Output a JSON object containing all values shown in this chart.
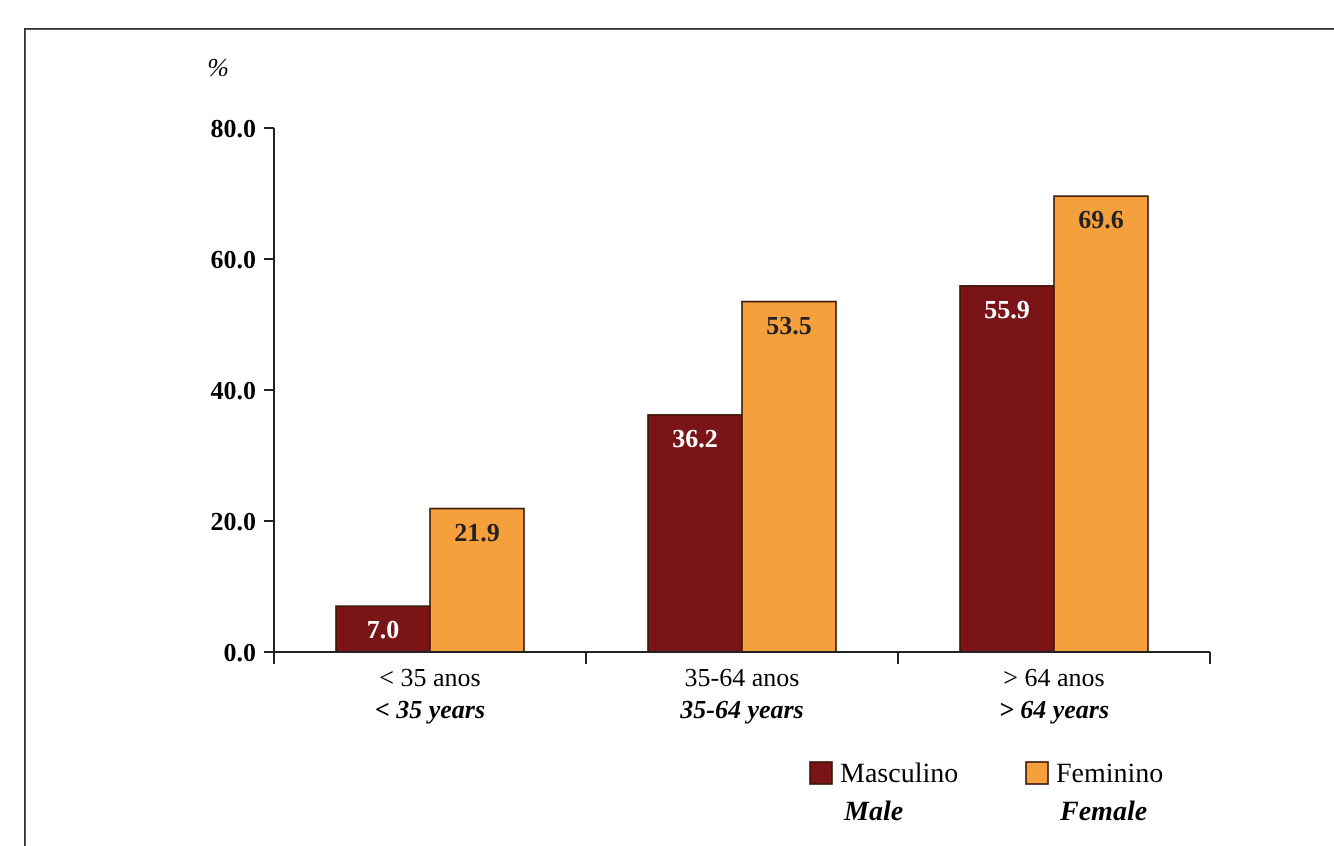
{
  "chart_data": {
    "type": "bar",
    "ylabel": "%",
    "categories": [
      "< 35 anos\n< 35 years",
      "35-64 anos\n35-64 years",
      "> 64 anos\n> 64 years"
    ],
    "series": [
      {
        "name": "Masculino\nMale",
        "color": "#7a1416",
        "values": [
          7.0,
          36.2,
          55.9
        ],
        "value_labels": [
          "7.0",
          "36.2",
          "55.9"
        ]
      },
      {
        "name": "Feminino\nFemale",
        "color": "#f5a03c",
        "values": [
          21.9,
          53.5,
          69.6
        ],
        "value_labels": [
          "21.9",
          "53.5",
          "69.6"
        ]
      }
    ],
    "ylim": [
      0,
      80
    ],
    "yticks": [
      {
        "value": 0,
        "label": "0.0"
      },
      {
        "value": 20,
        "label": "20.0"
      },
      {
        "value": 40,
        "label": "40.0"
      },
      {
        "value": 60,
        "label": "60.0"
      },
      {
        "value": 80,
        "label": "80.0"
      }
    ],
    "legend": "bottom right",
    "grid": false
  }
}
